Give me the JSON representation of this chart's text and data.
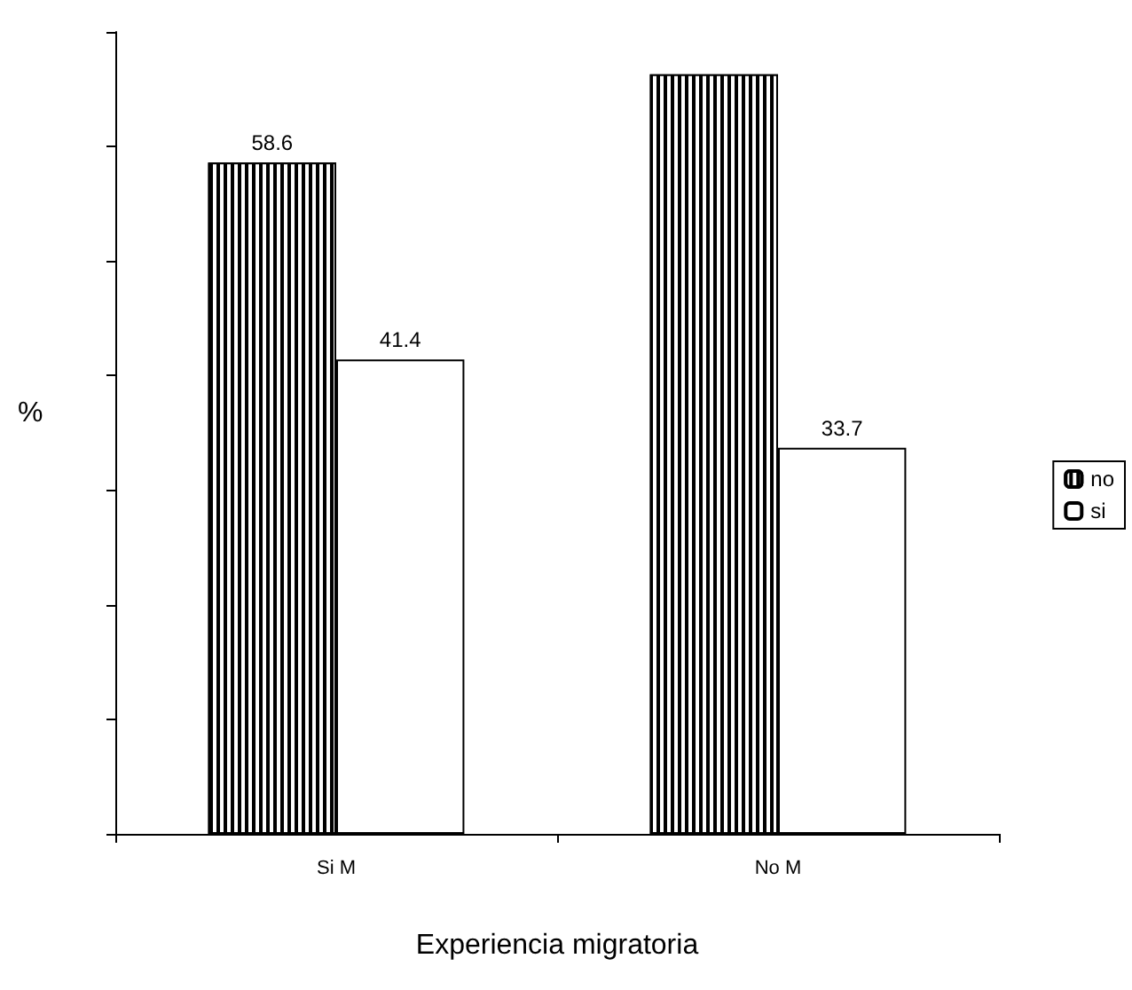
{
  "chart_data": {
    "type": "bar",
    "ylabel": "%",
    "xlabel": "Experiencia migratoria",
    "categories": [
      "Si M",
      "No M"
    ],
    "series": [
      {
        "name": "no",
        "color": "#000000",
        "values": [
          58.6,
          66.3
        ],
        "value_labels": [
          "58.6",
          null
        ]
      },
      {
        "name": "si",
        "color": "#ffffff",
        "values": [
          41.4,
          33.7
        ],
        "value_labels": [
          "41.4",
          "33.7"
        ]
      }
    ],
    "ylim": [
      0,
      70
    ],
    "yticks": [
      {
        "value": 0,
        "label": null
      },
      {
        "value": 10,
        "label": null
      },
      {
        "value": 20,
        "label": null
      },
      {
        "value": 30,
        "label": null
      },
      {
        "value": 40,
        "label": null
      },
      {
        "value": 50,
        "label": null
      },
      {
        "value": 60,
        "label": null
      },
      {
        "value": 70,
        "label": null
      }
    ],
    "tick_labels": "x",
    "grid": false,
    "legend": "right"
  }
}
